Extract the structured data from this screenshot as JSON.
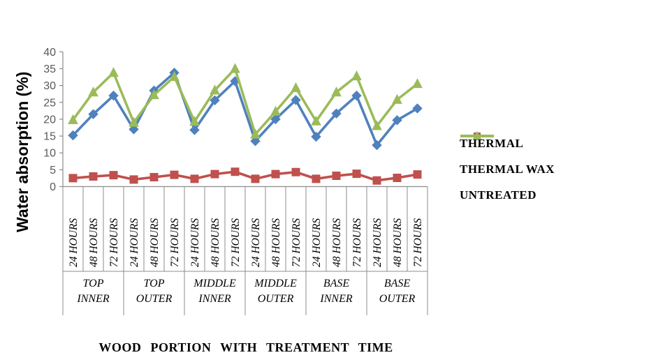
{
  "chart_data": {
    "type": "line",
    "title": "",
    "xlabel": "WOOD PORTION WITH TREATMENT TIME",
    "ylabel": "Water absorption (%)",
    "ylim": [
      0,
      40
    ],
    "ytick_step": 5,
    "grid": false,
    "legend_position": "right",
    "axis_color": "#8c8c8c",
    "groups": [
      "TOP INNER",
      "TOP OUTER",
      "MIDDLE INNER",
      "MIDDLE OUTER",
      "BASE INNER",
      "BASE OUTER"
    ],
    "categories": [
      "24 HOURS",
      "48 HOURS",
      "72 HOURS",
      "24 HOURS",
      "48 HOURS",
      "72 HOURS",
      "24 HOURS",
      "48 HOURS",
      "72 HOURS",
      "24 HOURS",
      "48 HOURS",
      "72 HOURS",
      "24 HOURS",
      "48 HOURS",
      "72 HOURS",
      "24 HOURS",
      "48 HOURS",
      "72 HOURS"
    ],
    "series": [
      {
        "name": "THERMAL",
        "color": "#4f81bd",
        "marker": "diamond",
        "values": [
          15.2,
          21.5,
          27.0,
          17.0,
          28.5,
          33.8,
          16.8,
          25.6,
          31.3,
          13.5,
          20.0,
          25.7,
          14.8,
          21.7,
          27.0,
          12.3,
          19.7,
          23.2
        ]
      },
      {
        "name": "THERMAL WAX",
        "color": "#c0504d",
        "marker": "square",
        "values": [
          2.5,
          3.0,
          3.4,
          2.1,
          2.8,
          3.5,
          2.3,
          3.7,
          4.4,
          2.3,
          3.7,
          4.3,
          2.3,
          3.2,
          3.8,
          1.8,
          2.6,
          3.6
        ]
      },
      {
        "name": "UNTREATED",
        "color": "#9bbb59",
        "marker": "triangle",
        "values": [
          19.8,
          28.0,
          33.8,
          19.0,
          27.2,
          32.6,
          19.3,
          28.6,
          35.0,
          15.5,
          22.3,
          29.3,
          19.4,
          28.0,
          32.8,
          18.0,
          25.8,
          30.5
        ]
      }
    ]
  }
}
